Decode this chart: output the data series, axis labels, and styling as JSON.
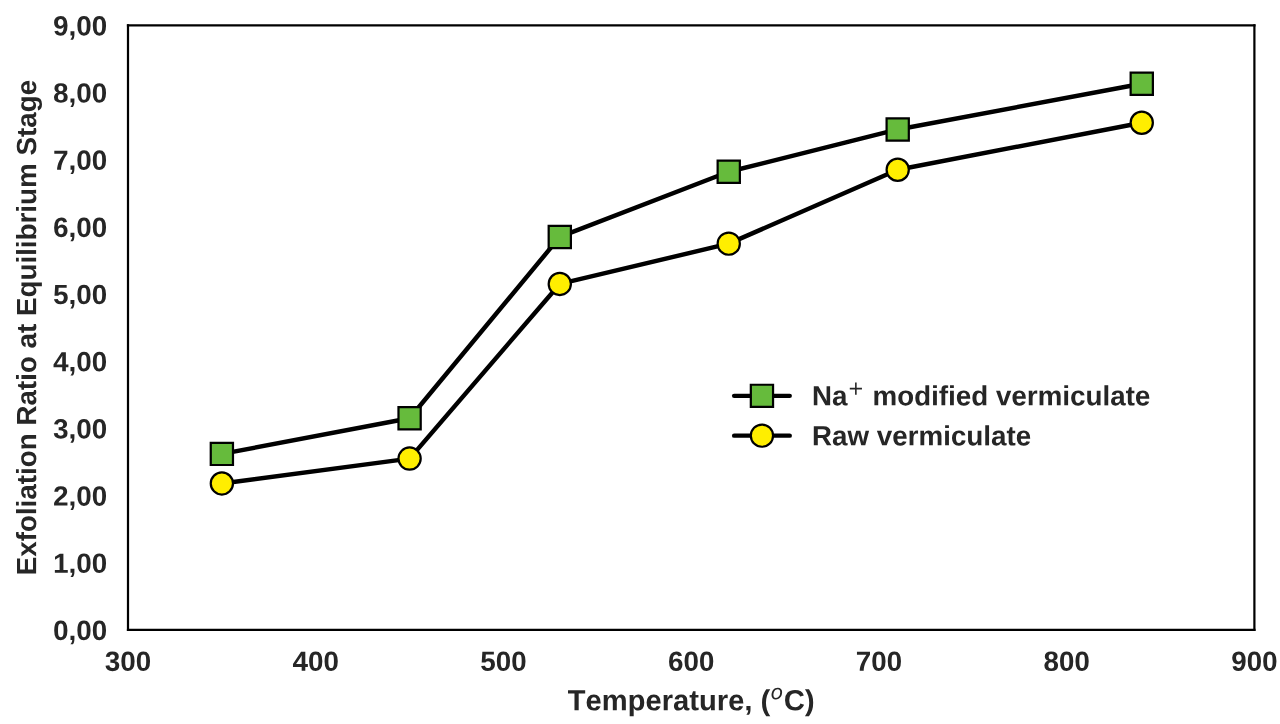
{
  "chart_data": {
    "type": "line",
    "xlabel": "Temperature, ($^{o}$C)",
    "ylabel": "Exfoliation Ratio at Equilibrium Stage",
    "x": [
      350,
      450,
      530,
      620,
      710,
      840
    ],
    "series": [
      {
        "name": "Na$^{+}$ modified vermiculate",
        "color": "#66bb3c",
        "marker": "square",
        "values": [
          2.62,
          3.15,
          5.85,
          6.82,
          7.45,
          8.13
        ]
      },
      {
        "name": "Raw vermiculate",
        "color": "#ffee00",
        "marker": "circle",
        "values": [
          2.18,
          2.55,
          5.15,
          5.75,
          6.85,
          7.55
        ]
      }
    ],
    "xlim": [
      300,
      900
    ],
    "xticks": [
      300,
      400,
      500,
      600,
      700,
      800,
      900
    ],
    "ylim": [
      0,
      9
    ],
    "yticks": [
      {
        "value": 0,
        "label": "0,00"
      },
      {
        "value": 1,
        "label": "1,00"
      },
      {
        "value": 2,
        "label": "2,00"
      },
      {
        "value": 3,
        "label": "3,00"
      },
      {
        "value": 4,
        "label": "4,00"
      },
      {
        "value": 5,
        "label": "5,00"
      },
      {
        "value": 6,
        "label": "6,00"
      },
      {
        "value": 7,
        "label": "7,00"
      },
      {
        "value": 8,
        "label": "8,00"
      },
      {
        "value": 9,
        "label": "9,00"
      }
    ],
    "grid": false,
    "legend": "right",
    "line_style": "solid"
  }
}
